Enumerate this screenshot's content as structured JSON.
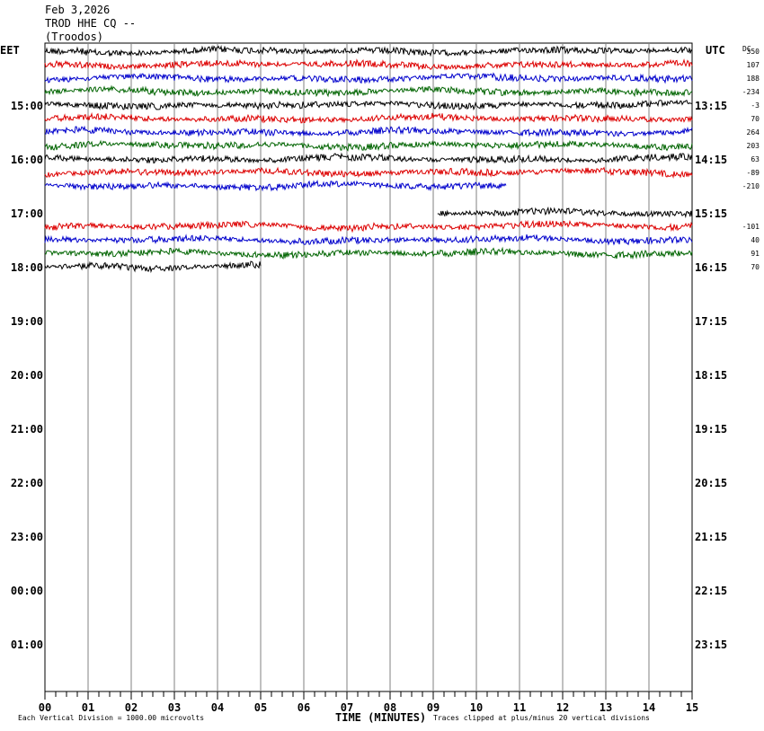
{
  "header": {
    "date": "Feb 3,2026",
    "station": "TROD HHE CQ --",
    "location": "(Troodos)"
  },
  "left_zone": "EET",
  "right_zone": "UTC",
  "dc_label": "DC",
  "colors": {
    "black": "#000000",
    "red": "#dd0000",
    "blue": "#0000cc",
    "green": "#006400",
    "grid": "#808080"
  },
  "chart_data": {
    "type": "line",
    "title": "TROD HHE CQ --",
    "xlabel": "TIME (MINUTES)",
    "x_ticks": [
      "00",
      "01",
      "02",
      "03",
      "04",
      "05",
      "06",
      "07",
      "08",
      "09",
      "10",
      "11",
      "12",
      "13",
      "14",
      "15"
    ],
    "xlim": [
      0,
      15
    ],
    "row_minutes": 15,
    "left_hour_labels": [
      "15:00",
      "16:00",
      "17:00",
      "18:00",
      "19:00",
      "20:00",
      "21:00",
      "22:00",
      "23:00",
      "00:00",
      "01:00"
    ],
    "right_hour_labels": [
      "13:15",
      "14:15",
      "15:15",
      "16:15",
      "17:15",
      "18:15",
      "19:15",
      "20:15",
      "21:15",
      "22:15",
      "23:15"
    ],
    "rows": [
      {
        "row": 0,
        "color": "black",
        "start_min": 0,
        "end_min": 15,
        "offset": "350"
      },
      {
        "row": 1,
        "color": "red",
        "start_min": 0,
        "end_min": 15,
        "offset": "107"
      },
      {
        "row": 2,
        "color": "blue",
        "start_min": 0,
        "end_min": 15,
        "offset": "188"
      },
      {
        "row": 3,
        "color": "green",
        "start_min": 0,
        "end_min": 15,
        "offset": "-234"
      },
      {
        "row": 4,
        "color": "black",
        "start_min": 0,
        "end_min": 15,
        "offset": "-3"
      },
      {
        "row": 5,
        "color": "red",
        "start_min": 0,
        "end_min": 15,
        "offset": "70"
      },
      {
        "row": 6,
        "color": "blue",
        "start_min": 0,
        "end_min": 15,
        "offset": "264"
      },
      {
        "row": 7,
        "color": "green",
        "start_min": 0,
        "end_min": 15,
        "offset": "203"
      },
      {
        "row": 8,
        "color": "black",
        "start_min": 0,
        "end_min": 15,
        "offset": "63"
      },
      {
        "row": 9,
        "color": "red",
        "start_min": 0,
        "end_min": 15,
        "offset": "-89"
      },
      {
        "row": 10,
        "color": "blue",
        "start_min": 0,
        "end_min": 10.7,
        "offset": "-210"
      },
      {
        "row": 12,
        "color": "black",
        "start_min": 9.1,
        "end_min": 15,
        "offset": ""
      },
      {
        "row": 13,
        "color": "red",
        "start_min": 0,
        "end_min": 15,
        "offset": "-101"
      },
      {
        "row": 14,
        "color": "blue",
        "start_min": 0,
        "end_min": 15,
        "offset": "40"
      },
      {
        "row": 15,
        "color": "green",
        "start_min": 0,
        "end_min": 15,
        "offset": "91"
      },
      {
        "row": 16,
        "color": "black",
        "start_min": 0,
        "end_min": 5,
        "offset": "70"
      }
    ],
    "footer_left": "Each Vertical Division = 1000.00 microvolts",
    "footer_right": "Traces clipped at plus/minus 20 vertical divisions"
  }
}
